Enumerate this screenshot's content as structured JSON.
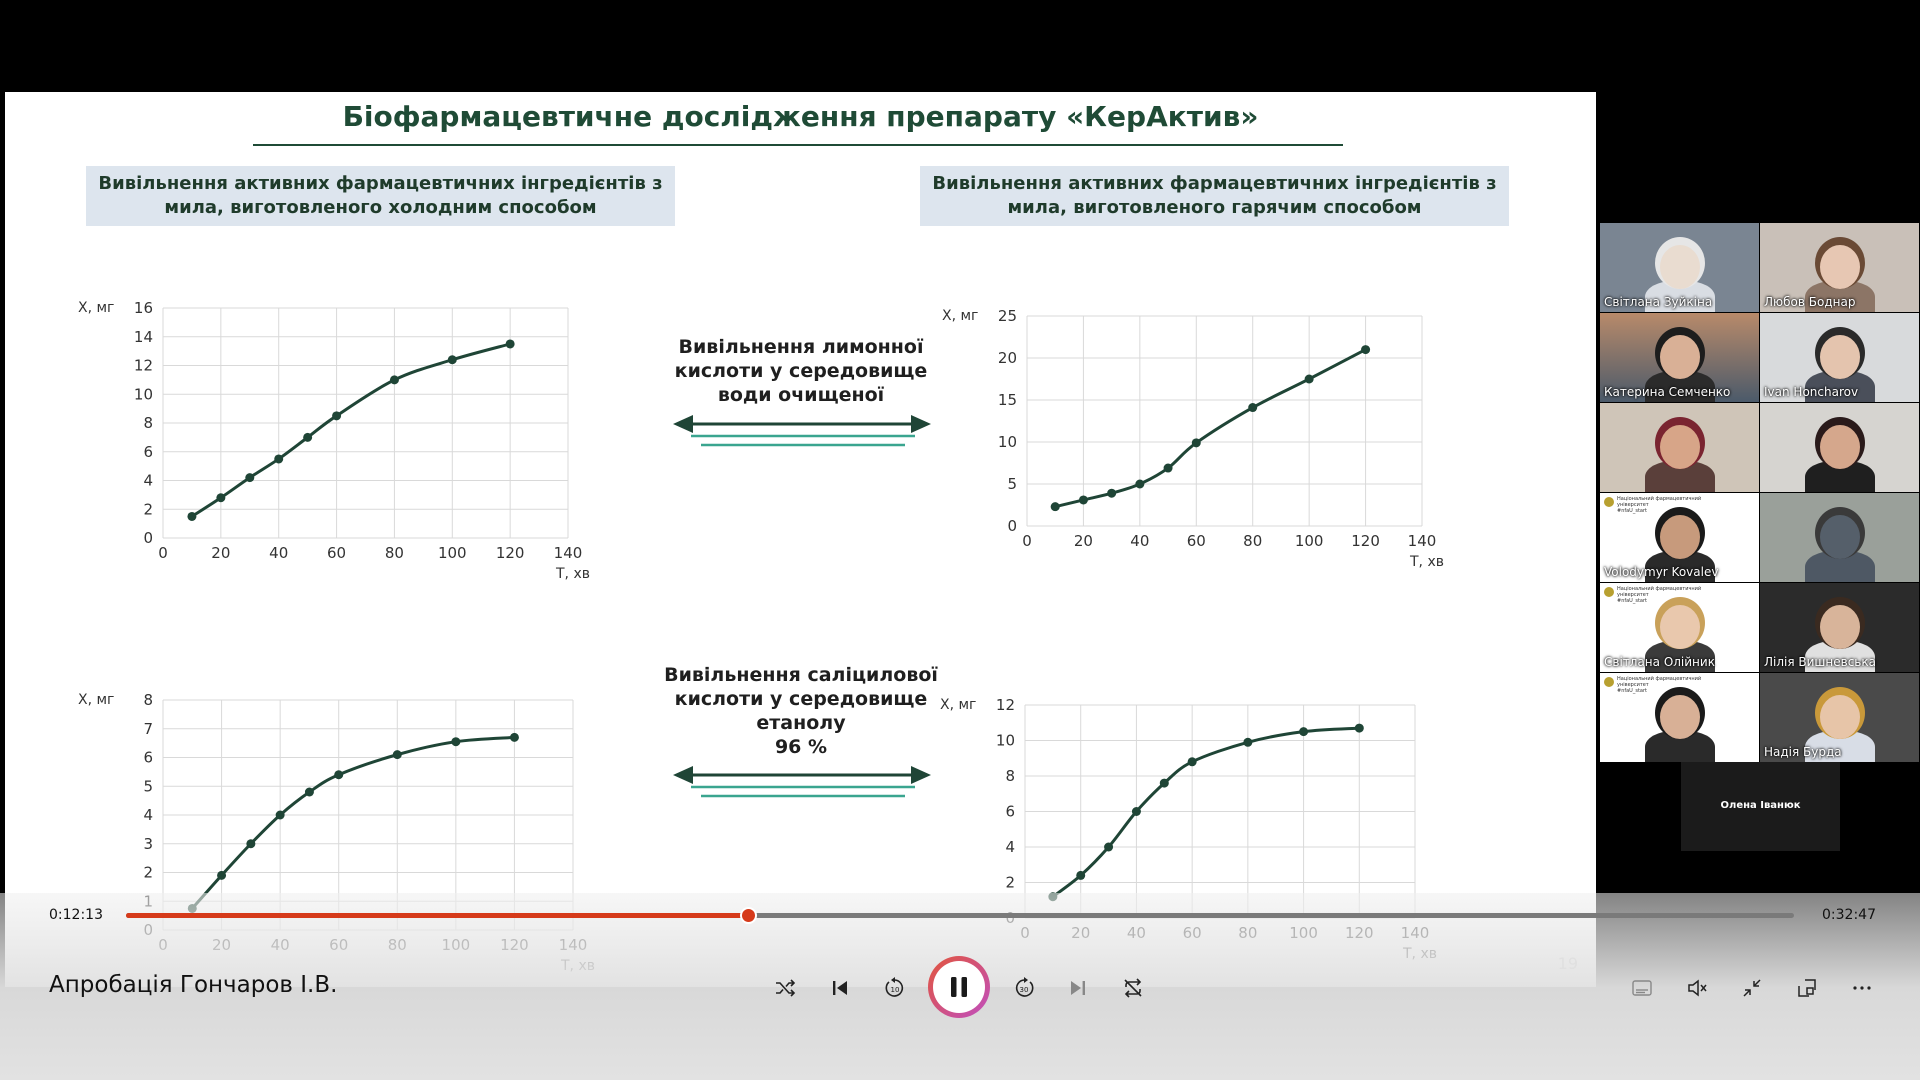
{
  "slide": {
    "title": "Біофармацевтичне дослідження препарату «КерАктив»",
    "header_left": "Вивільнення активних фармацевтичних інгредієнтів з мила, виготовленого холодним способом",
    "header_right": "Вивільнення активних фармацевтичних інгредієнтів з мила, виготовленого гарячим способом",
    "middle_label_1": [
      "Вивільнення лимонної",
      "кислоти у середовище",
      "води очищеної"
    ],
    "middle_label_2": [
      "Вивільнення саліцилової",
      "кислоти у середовище",
      "етанолу",
      "96 %"
    ],
    "page_number": "19",
    "colors": {
      "line": "#1f4536",
      "title": "#1f4b36",
      "arrow_dark": "#1f4536",
      "arrow_teal": "#3aa58f",
      "header_bg": "#dde5ee"
    }
  },
  "chart_data": [
    {
      "type": "line",
      "ylabel": "Х, мг",
      "xlabel": "Т, хв",
      "xlim": [
        0,
        140
      ],
      "xticks": [
        0,
        20,
        40,
        60,
        80,
        100,
        120,
        140
      ],
      "ylim": [
        0,
        16
      ],
      "yticks": [
        0,
        2,
        4,
        6,
        8,
        10,
        12,
        14,
        16
      ],
      "grid": true,
      "x": [
        10,
        20,
        30,
        40,
        50,
        60,
        80,
        100,
        120
      ],
      "y": [
        1.5,
        2.8,
        4.2,
        5.5,
        7.0,
        8.5,
        11.0,
        12.4,
        13.5
      ]
    },
    {
      "type": "line",
      "ylabel": "Х, мг",
      "xlabel": "Т, хв",
      "xlim": [
        0,
        140
      ],
      "xticks": [
        0,
        20,
        40,
        60,
        80,
        100,
        120,
        140
      ],
      "ylim": [
        0,
        25
      ],
      "yticks": [
        0,
        5,
        10,
        15,
        20,
        25
      ],
      "grid": true,
      "x": [
        10,
        20,
        30,
        40,
        50,
        60,
        80,
        100,
        120
      ],
      "y": [
        2.3,
        3.1,
        3.9,
        5.0,
        6.9,
        9.9,
        14.1,
        17.5,
        21.0
      ]
    },
    {
      "type": "line",
      "ylabel": "Х, мг",
      "xlabel": "Т, хв",
      "xlim": [
        0,
        140
      ],
      "xticks": [
        0,
        20,
        40,
        60,
        80,
        100,
        120,
        140
      ],
      "ylim": [
        0,
        8
      ],
      "yticks": [
        0,
        1,
        2,
        3,
        4,
        5,
        6,
        7,
        8
      ],
      "grid": true,
      "x": [
        10,
        20,
        30,
        40,
        50,
        60,
        80,
        100,
        120
      ],
      "y": [
        0.75,
        1.9,
        3.0,
        4.0,
        4.8,
        5.4,
        6.1,
        6.55,
        6.7
      ]
    },
    {
      "type": "line",
      "ylabel": "Х, мг",
      "xlabel": "Т, хв",
      "xlim": [
        0,
        140
      ],
      "xticks": [
        0,
        20,
        40,
        60,
        80,
        100,
        120,
        140
      ],
      "ylim": [
        0,
        12
      ],
      "yticks": [
        0,
        2,
        4,
        6,
        8,
        10,
        12
      ],
      "grid": true,
      "x": [
        10,
        20,
        30,
        40,
        50,
        60,
        80,
        100,
        120
      ],
      "y": [
        1.2,
        2.4,
        4.0,
        6.0,
        7.6,
        8.8,
        9.9,
        10.5,
        10.7
      ]
    }
  ],
  "participants": [
    {
      "name": "Світлана Зуйкіна"
    },
    {
      "name": "Любов Боднар"
    },
    {
      "name": "Катерина Семченко"
    },
    {
      "name": "Ivan Honcharov"
    },
    {
      "name": ""
    },
    {
      "name": ""
    },
    {
      "name": "Volodymyr Kovalev"
    },
    {
      "name": ""
    },
    {
      "name": "Світлана Олійник"
    },
    {
      "name": "Лілія Вишневська"
    },
    {
      "name": ""
    },
    {
      "name": "Надія Бурда"
    }
  ],
  "active_speaker": "Олена Іванюк",
  "tile_logo_text": [
    "Національний фармацевтичний",
    "університет",
    "#nfaU_start"
  ],
  "player": {
    "current_time": "0:12:13",
    "total_time": "0:32:47",
    "progress": 0.3727,
    "media_title": "Апробація Гончаров І.В.",
    "accent": "#d63a1a"
  }
}
